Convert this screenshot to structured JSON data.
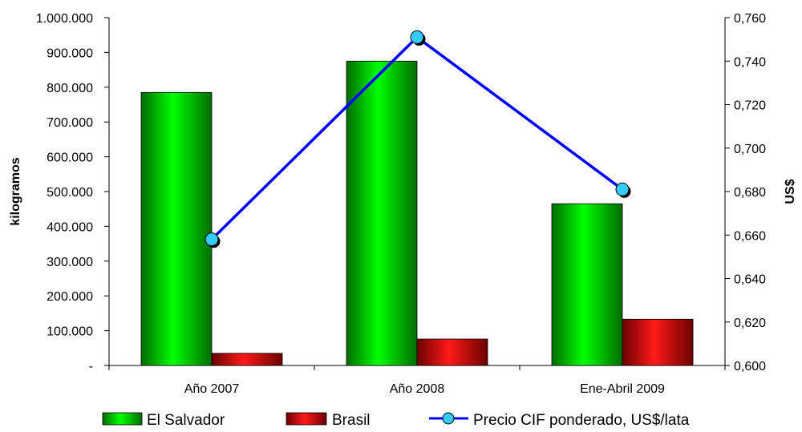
{
  "chart_data": {
    "type": "bar",
    "categories": [
      "Año 2007",
      "Año 2008",
      "Ene-Abril 2009"
    ],
    "series": [
      {
        "name": "El Salvador",
        "type": "bar",
        "axis": "left",
        "color": "#00cc00",
        "values": [
          785000,
          875000,
          465000
        ]
      },
      {
        "name": "Brasil",
        "type": "bar",
        "axis": "left",
        "color": "#cc0000",
        "values": [
          35000,
          76000,
          133000
        ]
      },
      {
        "name": "Precio CIF ponderado, US$/lata",
        "type": "line",
        "axis": "right",
        "color": "#0000ff",
        "marker_color": "#33ccff",
        "values": [
          0.658,
          0.751,
          0.681
        ]
      }
    ],
    "ylabel": "kilogramos",
    "y2label": "US$",
    "ylim": [
      0,
      1000000
    ],
    "y2lim": [
      0.6,
      0.76
    ],
    "y_ticks": [
      {
        "value": 0,
        "label": "-"
      },
      {
        "value": 100000,
        "label": "100.000"
      },
      {
        "value": 200000,
        "label": "200.000"
      },
      {
        "value": 300000,
        "label": "300.000"
      },
      {
        "value": 400000,
        "label": "400.000"
      },
      {
        "value": 500000,
        "label": "500.000"
      },
      {
        "value": 600000,
        "label": "600.000"
      },
      {
        "value": 700000,
        "label": "700.000"
      },
      {
        "value": 800000,
        "label": "800.000"
      },
      {
        "value": 900000,
        "label": "900.000"
      },
      {
        "value": 1000000,
        "label": "1.000.000"
      }
    ],
    "y2_ticks": [
      {
        "value": 0.6,
        "label": "0,600"
      },
      {
        "value": 0.62,
        "label": "0,620"
      },
      {
        "value": 0.64,
        "label": "0,640"
      },
      {
        "value": 0.66,
        "label": "0,660"
      },
      {
        "value": 0.68,
        "label": "0,680"
      },
      {
        "value": 0.7,
        "label": "0,700"
      },
      {
        "value": 0.72,
        "label": "0,720"
      },
      {
        "value": 0.74,
        "label": "0,740"
      },
      {
        "value": 0.76,
        "label": "0,760"
      }
    ],
    "legend_position": "bottom",
    "grid": false
  }
}
